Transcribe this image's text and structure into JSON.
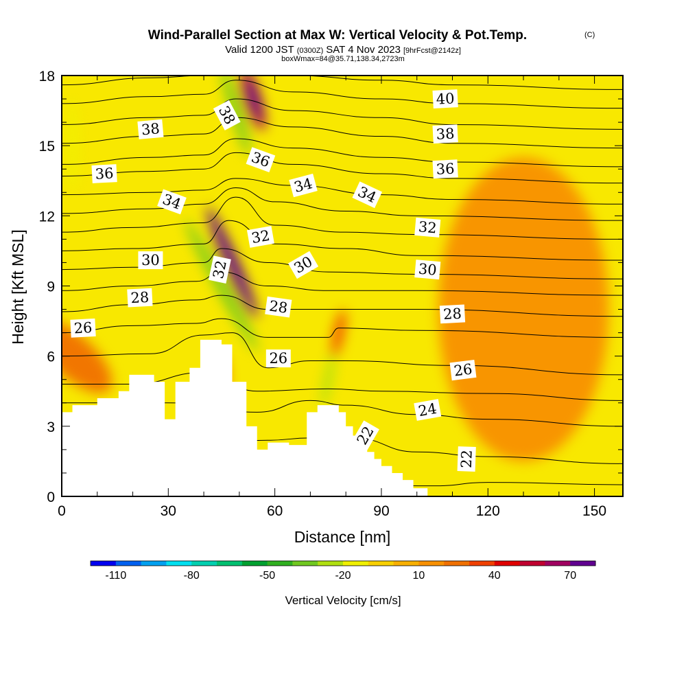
{
  "chart_data": {
    "type": "heatmap",
    "title": "Wind-Parallel Section at Max W: Vertical Velocity & Pot.Temp.",
    "title_mark": "(C)",
    "subtitle": {
      "valid_prefix": "Valid 1200 JST",
      "utc": "(0300Z)",
      "date": "SAT 4 Nov 2023",
      "forecast": "[9hrFcst@2142z]"
    },
    "box_info": "boxWmax=84@35.71,138.34,2723m",
    "xlabel": "Distance [nm]",
    "ylabel": "Height [Kft MSL]",
    "xlim": [
      0,
      158
    ],
    "ylim": [
      0,
      18
    ],
    "x_ticks": [
      "0",
      "30",
      "60",
      "90",
      "120",
      "150"
    ],
    "y_ticks": [
      "0",
      "3",
      "6",
      "9",
      "12",
      "15",
      "18"
    ],
    "colorbar": {
      "label": "Vertical Velocity [cm/s]",
      "tick_labels": [
        "-110",
        "-80",
        "-50",
        "-20",
        "10",
        "40",
        "70"
      ],
      "colors": [
        "#0000f0",
        "#0060f0",
        "#00a0f0",
        "#00e0f0",
        "#00d0b0",
        "#00c070",
        "#00a030",
        "#30b020",
        "#70c820",
        "#b0e010",
        "#f0f000",
        "#f8d000",
        "#f8b000",
        "#f89000",
        "#f07000",
        "#f04000",
        "#e00000",
        "#c00030",
        "#a00060",
        "#600090"
      ]
    },
    "terrain": [
      [
        0,
        3.6
      ],
      [
        3,
        3.6
      ],
      [
        3,
        3.9
      ],
      [
        10,
        3.9
      ],
      [
        10,
        4.2
      ],
      [
        16,
        4.2
      ],
      [
        16,
        4.5
      ],
      [
        19,
        4.5
      ],
      [
        19,
        5.2
      ],
      [
        26,
        5.2
      ],
      [
        26,
        4.9
      ],
      [
        29,
        4.9
      ],
      [
        29,
        3.3
      ],
      [
        32,
        3.3
      ],
      [
        32,
        4.9
      ],
      [
        36,
        4.9
      ],
      [
        36,
        5.5
      ],
      [
        39,
        5.5
      ],
      [
        39,
        6.7
      ],
      [
        45,
        6.7
      ],
      [
        45,
        6.5
      ],
      [
        48,
        6.5
      ],
      [
        48,
        4.9
      ],
      [
        52,
        4.9
      ],
      [
        52,
        3.0
      ],
      [
        55,
        3.0
      ],
      [
        55,
        2.6
      ],
      [
        55,
        2.0
      ],
      [
        58,
        2.0
      ],
      [
        58,
        2.3
      ],
      [
        64,
        2.3
      ],
      [
        64,
        2.2
      ],
      [
        69,
        2.2
      ],
      [
        69,
        3.6
      ],
      [
        72,
        3.6
      ],
      [
        72,
        3.9
      ],
      [
        78,
        3.9
      ],
      [
        78,
        3.6
      ],
      [
        80,
        3.6
      ],
      [
        80,
        3.0
      ],
      [
        82,
        3.0
      ],
      [
        82,
        2.6
      ],
      [
        84,
        2.6
      ],
      [
        84,
        2.3
      ],
      [
        86,
        2.3
      ],
      [
        86,
        1.9
      ],
      [
        88,
        1.9
      ],
      [
        88,
        1.6
      ],
      [
        90,
        1.6
      ],
      [
        90,
        1.3
      ],
      [
        93,
        1.3
      ],
      [
        93,
        1.0
      ],
      [
        96,
        1.0
      ],
      [
        96,
        0.7
      ],
      [
        99,
        0.7
      ],
      [
        99,
        0.35
      ],
      [
        103,
        0.35
      ],
      [
        103,
        0.35
      ]
    ],
    "w_features": [
      {
        "name": "upslope-band",
        "x": 3,
        "y": 6,
        "w": 28
      },
      {
        "name": "main-updraft",
        "x": 48,
        "y": 10,
        "w": 84
      },
      {
        "name": "upper-updraft",
        "x": 54,
        "y": 17,
        "w": 60
      },
      {
        "name": "lower-updraft",
        "x": 45,
        "y": 5,
        "w": 30
      },
      {
        "name": "main-downdraft",
        "x": 45,
        "y": 9,
        "w": -35
      },
      {
        "name": "upper-downdraft",
        "x": 49,
        "y": 16.5,
        "w": -40
      },
      {
        "name": "lee-downdraft",
        "x": 75,
        "y": 5,
        "w": -25
      },
      {
        "name": "lee-updraft",
        "x": 78,
        "y": 7,
        "w": 30
      },
      {
        "name": "west-downdraft",
        "x": 3,
        "y": 15,
        "w": -20
      },
      {
        "name": "orange-region-east",
        "x": 130,
        "y": 8,
        "w": 12
      }
    ],
    "contours": [
      {
        "theta": 22,
        "anchors": [
          [
            0,
            0.7
          ],
          [
            50,
            0.6
          ],
          [
            105,
            0.45
          ],
          [
            120,
            0.6
          ],
          [
            158,
            0.5
          ]
        ]
      },
      {
        "theta": 23,
        "anchors": [
          [
            0,
            2.2
          ],
          [
            40,
            2.2
          ],
          [
            58,
            2.4
          ],
          [
            70,
            2.5
          ],
          [
            82,
            2.5
          ],
          [
            100,
            1.9
          ],
          [
            120,
            1.7
          ],
          [
            158,
            1.4
          ]
        ]
      },
      {
        "theta": 24,
        "anchors": [
          [
            0,
            4.0
          ],
          [
            30,
            4.0
          ],
          [
            55,
            3.6
          ],
          [
            70,
            4.1
          ],
          [
            80,
            3.9
          ],
          [
            100,
            3.5
          ],
          [
            120,
            3.3
          ],
          [
            158,
            3.0
          ]
        ]
      },
      {
        "theta": 25,
        "anchors": [
          [
            0,
            4.8
          ],
          [
            20,
            4.8
          ],
          [
            40,
            5.3
          ],
          [
            55,
            4.5
          ],
          [
            75,
            4.6
          ],
          [
            90,
            4.5
          ],
          [
            120,
            4.4
          ],
          [
            158,
            4.1
          ]
        ]
      },
      {
        "theta": 26,
        "anchors": [
          [
            0,
            6.0
          ],
          [
            25,
            6.1
          ],
          [
            40,
            6.9
          ],
          [
            48,
            7.0
          ],
          [
            58,
            5.5
          ],
          [
            70,
            5.8
          ],
          [
            80,
            5.8
          ],
          [
            110,
            5.6
          ],
          [
            158,
            5.2
          ]
        ]
      },
      {
        "theta": 27,
        "anchors": [
          [
            0,
            7.0
          ],
          [
            20,
            7.3
          ],
          [
            38,
            7.4
          ],
          [
            45,
            7.6
          ],
          [
            58,
            6.8
          ],
          [
            75,
            6.8
          ],
          [
            78,
            7.2
          ],
          [
            100,
            7.1
          ],
          [
            158,
            6.8
          ]
        ]
      },
      {
        "theta": 28,
        "anchors": [
          [
            0,
            7.9
          ],
          [
            20,
            8.2
          ],
          [
            38,
            8.4
          ],
          [
            45,
            8.6
          ],
          [
            58,
            8.0
          ],
          [
            75,
            8.0
          ],
          [
            100,
            8.0
          ],
          [
            158,
            7.7
          ]
        ]
      },
      {
        "theta": 29,
        "anchors": [
          [
            0,
            8.8
          ],
          [
            20,
            9.0
          ],
          [
            38,
            9.2
          ],
          [
            45,
            9.6
          ],
          [
            58,
            9.0
          ],
          [
            75,
            8.8
          ],
          [
            100,
            8.8
          ],
          [
            158,
            8.6
          ]
        ]
      },
      {
        "theta": 30,
        "anchors": [
          [
            0,
            9.7
          ],
          [
            20,
            9.8
          ],
          [
            40,
            10.0
          ],
          [
            45,
            10.6
          ],
          [
            58,
            10.0
          ],
          [
            75,
            9.6
          ],
          [
            100,
            9.5
          ],
          [
            158,
            9.3
          ]
        ]
      },
      {
        "theta": 31,
        "anchors": [
          [
            0,
            10.5
          ],
          [
            20,
            10.6
          ],
          [
            40,
            10.8
          ],
          [
            47,
            11.8
          ],
          [
            60,
            10.8
          ],
          [
            80,
            10.6
          ],
          [
            100,
            10.3
          ],
          [
            158,
            10.1
          ]
        ]
      },
      {
        "theta": 32,
        "anchors": [
          [
            0,
            11.3
          ],
          [
            20,
            11.5
          ],
          [
            40,
            11.7
          ],
          [
            49,
            12.8
          ],
          [
            60,
            11.6
          ],
          [
            80,
            11.3
          ],
          [
            100,
            11.2
          ],
          [
            158,
            11.0
          ]
        ]
      },
      {
        "theta": 33,
        "anchors": [
          [
            0,
            12.1
          ],
          [
            25,
            12.3
          ],
          [
            40,
            12.5
          ],
          [
            49,
            13.2
          ],
          [
            60,
            12.6
          ],
          [
            80,
            12.2
          ],
          [
            100,
            12.0
          ],
          [
            158,
            11.8
          ]
        ]
      },
      {
        "theta": 34,
        "anchors": [
          [
            0,
            12.9
          ],
          [
            25,
            13.0
          ],
          [
            40,
            13.1
          ],
          [
            49,
            13.6
          ],
          [
            65,
            13.3
          ],
          [
            90,
            12.9
          ],
          [
            110,
            12.7
          ],
          [
            158,
            12.5
          ]
        ]
      },
      {
        "theta": 35,
        "anchors": [
          [
            0,
            13.7
          ],
          [
            25,
            13.9
          ],
          [
            40,
            14.0
          ],
          [
            49,
            14.7
          ],
          [
            65,
            14.2
          ],
          [
            90,
            13.8
          ],
          [
            110,
            13.6
          ],
          [
            158,
            13.4
          ]
        ]
      },
      {
        "theta": 36,
        "anchors": [
          [
            0,
            14.2
          ],
          [
            25,
            14.5
          ],
          [
            40,
            14.6
          ],
          [
            49,
            15.3
          ],
          [
            65,
            14.9
          ],
          [
            90,
            14.5
          ],
          [
            110,
            14.3
          ],
          [
            158,
            14.1
          ]
        ]
      },
      {
        "theta": 37,
        "anchors": [
          [
            0,
            15.1
          ],
          [
            25,
            15.4
          ],
          [
            40,
            15.5
          ],
          [
            49,
            16.2
          ],
          [
            65,
            15.8
          ],
          [
            90,
            15.4
          ],
          [
            110,
            15.1
          ],
          [
            158,
            14.9
          ]
        ]
      },
      {
        "theta": 38,
        "anchors": [
          [
            0,
            15.9
          ],
          [
            25,
            16.2
          ],
          [
            40,
            16.3
          ],
          [
            49,
            17.0
          ],
          [
            65,
            16.5
          ],
          [
            90,
            16.2
          ],
          [
            110,
            15.9
          ],
          [
            158,
            15.7
          ]
        ]
      },
      {
        "theta": 39,
        "anchors": [
          [
            0,
            16.8
          ],
          [
            25,
            17.1
          ],
          [
            40,
            17.2
          ],
          [
            49,
            17.8
          ],
          [
            65,
            17.3
          ],
          [
            90,
            17.0
          ],
          [
            110,
            16.8
          ],
          [
            158,
            16.6
          ]
        ]
      },
      {
        "theta": 40,
        "anchors": [
          [
            0,
            17.6
          ],
          [
            25,
            17.9
          ],
          [
            40,
            18.0
          ],
          [
            49,
            18.0
          ],
          [
            65,
            18.0
          ],
          [
            90,
            17.8
          ],
          [
            110,
            17.6
          ],
          [
            158,
            17.4
          ]
        ]
      }
    ],
    "contour_labels": [
      {
        "text": "40",
        "x": 108,
        "y": 17.0,
        "rot": -3
      },
      {
        "text": "38",
        "x": 25,
        "y": 15.7,
        "rot": -5
      },
      {
        "text": "38",
        "x": 46.5,
        "y": 16.3,
        "rot": 62
      },
      {
        "text": "38",
        "x": 108,
        "y": 15.5,
        "rot": -3
      },
      {
        "text": "36",
        "x": 12,
        "y": 13.8,
        "rot": -3
      },
      {
        "text": "36",
        "x": 56,
        "y": 14.4,
        "rot": 20
      },
      {
        "text": "36",
        "x": 108,
        "y": 14.0,
        "rot": -3
      },
      {
        "text": "34",
        "x": 31,
        "y": 12.6,
        "rot": 20
      },
      {
        "text": "34",
        "x": 68,
        "y": 13.3,
        "rot": -15
      },
      {
        "text": "34",
        "x": 86,
        "y": 12.9,
        "rot": 25
      },
      {
        "text": "32",
        "x": 56,
        "y": 11.1,
        "rot": -10
      },
      {
        "text": "32",
        "x": 44.5,
        "y": 9.7,
        "rot": -78
      },
      {
        "text": "32",
        "x": 103,
        "y": 11.5,
        "rot": 5
      },
      {
        "text": "30",
        "x": 25,
        "y": 10.1,
        "rot": 0
      },
      {
        "text": "30",
        "x": 68,
        "y": 9.9,
        "rot": -30
      },
      {
        "text": "30",
        "x": 103,
        "y": 9.7,
        "rot": 5
      },
      {
        "text": "28",
        "x": 22,
        "y": 8.5,
        "rot": -3
      },
      {
        "text": "28",
        "x": 61,
        "y": 8.1,
        "rot": 8
      },
      {
        "text": "28",
        "x": 110,
        "y": 7.8,
        "rot": -3
      },
      {
        "text": "26",
        "x": 6,
        "y": 7.2,
        "rot": -3
      },
      {
        "text": "26",
        "x": 61,
        "y": 5.9,
        "rot": 0
      },
      {
        "text": "26",
        "x": 113,
        "y": 5.4,
        "rot": -7
      },
      {
        "text": "24",
        "x": 103,
        "y": 3.7,
        "rot": -10
      },
      {
        "text": "22",
        "x": 85.5,
        "y": 2.6,
        "rot": -60
      },
      {
        "text": "22",
        "x": 114,
        "y": 1.6,
        "rot": -88
      }
    ]
  }
}
